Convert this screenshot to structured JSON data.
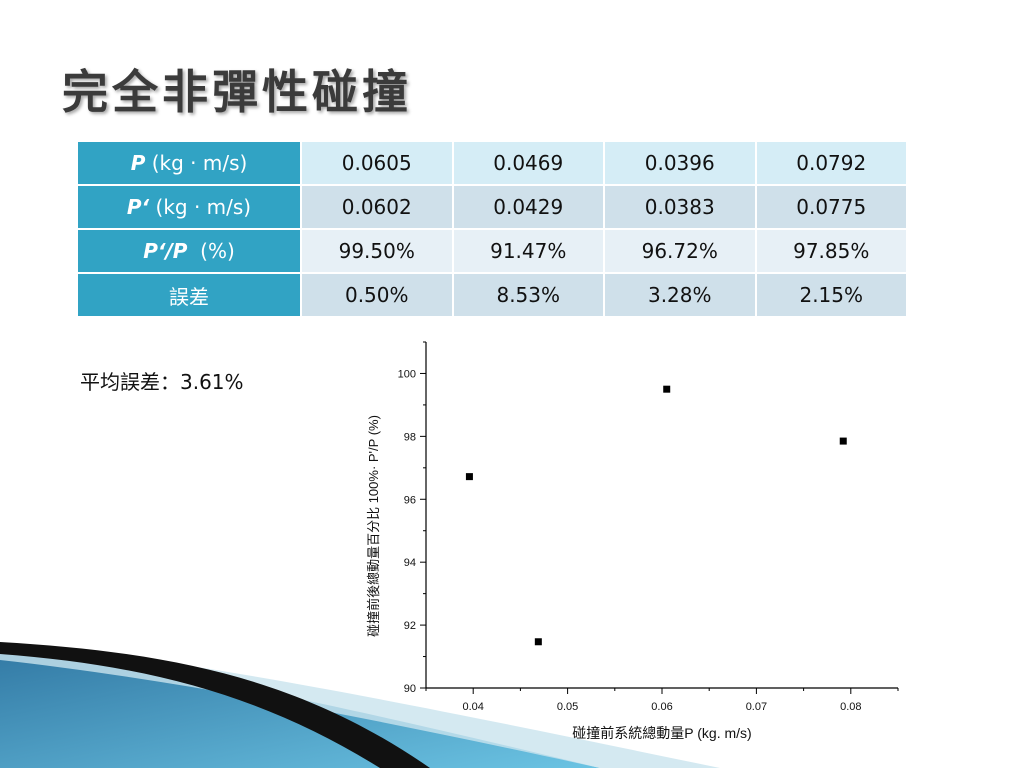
{
  "slide": {
    "title": "完全非彈性碰撞",
    "average_error": "平均誤差：3.61%"
  },
  "table": {
    "rows": [
      {
        "label_italic": "P",
        "label_rest": " (kg · m/s)",
        "values": [
          "0.0605",
          "0.0469",
          "0.0396",
          "0.0792"
        ]
      },
      {
        "label_italic": "P‘",
        "label_rest": " (kg · m/s)",
        "values": [
          "0.0602",
          "0.0429",
          "0.0383",
          "0.0775"
        ]
      },
      {
        "label_italic": "P‘/P",
        "label_rest": "  (%)",
        "values": [
          "99.50%",
          "91.47%",
          "96.72%",
          "97.85%"
        ]
      },
      {
        "label_italic": "",
        "label_rest": "誤差",
        "values": [
          "0.50%",
          "8.53%",
          "3.28%",
          "2.15%"
        ]
      }
    ],
    "colors": {
      "header": "#31a3c4",
      "cell_light": "#d5edf6",
      "cell_mid": "#cfe0ea",
      "cell_pale": "#e7f0f6"
    }
  },
  "chart_data": {
    "type": "scatter",
    "xlabel": "碰撞前系統總動量P (kg.   m/s)",
    "ylabel": "碰撞前後總動量百分比 100%·  P'/P (%)",
    "xlim": [
      0.035,
      0.085
    ],
    "ylim": [
      90,
      101
    ],
    "xticks": [
      "0.04",
      "0.05",
      "0.06",
      "0.07",
      "0.08"
    ],
    "yticks": [
      "90",
      "92",
      "94",
      "96",
      "98",
      "100"
    ],
    "points": [
      {
        "x": 0.0396,
        "y": 96.72
      },
      {
        "x": 0.0469,
        "y": 91.47
      },
      {
        "x": 0.0605,
        "y": 99.5
      },
      {
        "x": 0.0792,
        "y": 97.85
      }
    ],
    "marker_color": "#000000",
    "grid": false
  }
}
